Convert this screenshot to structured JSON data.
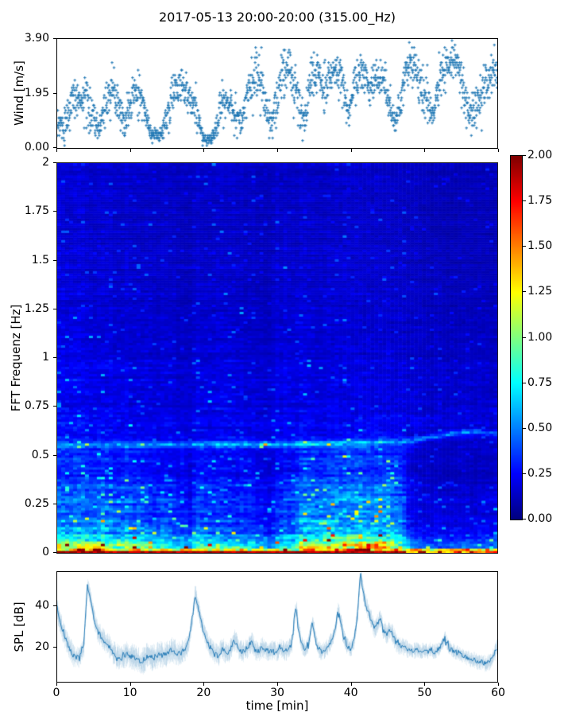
{
  "title": "2017-05-13 20:00-20:00 (315.00_Hz)",
  "colors": {
    "series_blue": "#1f77b4",
    "spine": "#000000",
    "text": "#000000",
    "background": "#ffffff",
    "colormap": "jet"
  },
  "chart_data": [
    {
      "id": "wind",
      "type": "scatter",
      "ylabel": "Wind [m/s]",
      "xlim": [
        0,
        60
      ],
      "ylim": [
        0,
        3.9
      ],
      "ytick_values": [
        0,
        1.95,
        3.9
      ],
      "ytick_labels": [
        "0.00",
        "1.95",
        "3.90"
      ],
      "xtick_values": [
        0,
        10,
        20,
        30,
        40,
        50,
        60
      ],
      "marker": "plus",
      "color": "#1f77b4",
      "n_points": 1750,
      "seed": 20170513,
      "envelope_t_center_spread": [
        [
          0,
          0.7,
          0.5
        ],
        [
          1,
          0.8,
          0.5
        ],
        [
          2,
          1.5,
          0.7
        ],
        [
          3,
          1.8,
          0.8
        ],
        [
          4,
          1.7,
          0.9
        ],
        [
          5,
          1.1,
          0.7
        ],
        [
          5.7,
          0.6,
          0.4
        ],
        [
          6.5,
          1.6,
          0.7
        ],
        [
          7.5,
          2.0,
          0.8
        ],
        [
          8.5,
          1.6,
          0.8
        ],
        [
          9.2,
          0.8,
          0.5
        ],
        [
          10,
          1.7,
          0.8
        ],
        [
          11,
          2.1,
          0.7
        ],
        [
          12,
          1.2,
          0.6
        ],
        [
          12.7,
          0.5,
          0.25
        ],
        [
          14,
          0.45,
          0.2
        ],
        [
          15,
          1.1,
          0.6
        ],
        [
          16,
          2.2,
          0.7
        ],
        [
          17,
          2.4,
          0.6
        ],
        [
          18,
          1.9,
          0.7
        ],
        [
          19,
          1.3,
          0.6
        ],
        [
          19.8,
          0.35,
          0.2
        ],
        [
          21,
          0.3,
          0.15
        ],
        [
          21.8,
          0.9,
          0.5
        ],
        [
          22.5,
          1.7,
          0.6
        ],
        [
          23.5,
          1.6,
          0.6
        ],
        [
          24.5,
          1.1,
          0.5
        ],
        [
          25.2,
          0.9,
          0.4
        ],
        [
          26,
          2.0,
          0.8
        ],
        [
          27,
          2.6,
          0.8
        ],
        [
          28,
          2.2,
          0.9
        ],
        [
          28.8,
          0.9,
          0.6
        ],
        [
          29.5,
          1.0,
          0.7
        ],
        [
          30.5,
          2.6,
          0.8
        ],
        [
          31.5,
          2.9,
          0.7
        ],
        [
          32.3,
          2.2,
          0.8
        ],
        [
          33,
          1.5,
          0.9
        ],
        [
          33.7,
          1.0,
          0.6
        ],
        [
          34.5,
          2.5,
          0.7
        ],
        [
          35.5,
          2.8,
          0.6
        ],
        [
          36.3,
          2.1,
          0.7
        ],
        [
          37,
          2.5,
          0.7
        ],
        [
          38,
          2.8,
          0.6
        ],
        [
          39,
          2.2,
          0.7
        ],
        [
          39.7,
          1.1,
          0.5
        ],
        [
          40.5,
          2.3,
          0.7
        ],
        [
          41.5,
          2.8,
          0.6
        ],
        [
          42.5,
          2.0,
          0.7
        ],
        [
          43.5,
          2.5,
          0.6
        ],
        [
          44.5,
          2.4,
          0.7
        ],
        [
          45.3,
          1.5,
          0.6
        ],
        [
          46,
          0.9,
          0.4
        ],
        [
          46.8,
          1.8,
          0.7
        ],
        [
          47.5,
          2.8,
          0.6
        ],
        [
          48.5,
          3.0,
          0.6
        ],
        [
          49.5,
          2.4,
          0.7
        ],
        [
          50.5,
          1.6,
          0.9
        ],
        [
          51.2,
          1.0,
          0.5
        ],
        [
          52,
          2.2,
          0.8
        ],
        [
          53,
          3.0,
          0.6
        ],
        [
          54,
          3.2,
          0.5
        ],
        [
          55,
          2.6,
          0.8
        ],
        [
          56,
          1.2,
          0.5
        ],
        [
          57,
          1.5,
          0.7
        ],
        [
          58,
          1.9,
          0.8
        ],
        [
          59,
          2.6,
          0.7
        ],
        [
          60,
          2.8,
          0.6
        ]
      ]
    },
    {
      "id": "spectrogram",
      "type": "heatmap",
      "ylabel": "FFT Frequenz [Hz]",
      "xlim": [
        0,
        60
      ],
      "ylim": [
        0,
        2
      ],
      "ytick_values": [
        0,
        0.25,
        0.5,
        0.75,
        1,
        1.25,
        1.5,
        1.75,
        2
      ],
      "ytick_labels": [
        "0",
        "0.25",
        "0.5",
        "0.75",
        "1",
        "1.25",
        "1.5",
        "1.75",
        "2"
      ],
      "colormap": "jet",
      "clim": [
        0,
        2
      ],
      "colorbar_tick_values": [
        0,
        0.25,
        0.5,
        0.75,
        1,
        1.25,
        1.5,
        1.75,
        2
      ],
      "colorbar_tick_labels": [
        "0.00",
        "0.25",
        "0.50",
        "0.75",
        "1.00",
        "1.25",
        "1.50",
        "1.75",
        "2.00"
      ],
      "grid": {
        "cols": 111,
        "rows": 163
      },
      "seed": 315,
      "freq_value_profile": [
        [
          0,
          1.95
        ],
        [
          0.012,
          1.6
        ],
        [
          0.03,
          1.0
        ],
        [
          0.06,
          0.8
        ],
        [
          0.1,
          0.6
        ],
        [
          0.15,
          0.5
        ],
        [
          0.22,
          0.45
        ],
        [
          0.3,
          0.4
        ],
        [
          0.38,
          0.33
        ],
        [
          0.45,
          0.3
        ],
        [
          0.55,
          0.29
        ],
        [
          0.62,
          0.26
        ],
        [
          0.7,
          0.23
        ],
        [
          0.8,
          0.21
        ],
        [
          0.9,
          0.2
        ],
        [
          1.0,
          0.19
        ],
        [
          1.2,
          0.17
        ],
        [
          1.5,
          0.16
        ],
        [
          1.8,
          0.15
        ],
        [
          2.0,
          0.15
        ]
      ],
      "time_mod_lowfreq": [
        [
          0,
          1.05
        ],
        [
          3,
          1.1
        ],
        [
          6,
          1.05
        ],
        [
          9,
          1.0
        ],
        [
          11,
          1.0
        ],
        [
          13,
          0.85
        ],
        [
          15,
          0.8
        ],
        [
          17,
          0.7
        ],
        [
          18,
          0.6
        ],
        [
          19,
          0.85
        ],
        [
          20,
          0.9
        ],
        [
          22,
          0.8
        ],
        [
          24,
          0.72
        ],
        [
          26,
          0.78
        ],
        [
          28,
          0.6
        ],
        [
          29,
          0.55
        ],
        [
          30,
          0.75
        ],
        [
          32,
          0.9
        ],
        [
          33,
          1.1
        ],
        [
          35,
          1.2
        ],
        [
          37,
          1.15
        ],
        [
          38,
          1.2
        ],
        [
          40,
          1.15
        ],
        [
          41,
          1.35
        ],
        [
          42,
          1.3
        ],
        [
          43,
          1.2
        ],
        [
          44,
          1.25
        ],
        [
          45,
          1.2
        ],
        [
          46,
          1.15
        ],
        [
          47,
          0.95
        ],
        [
          48,
          0.55
        ],
        [
          49,
          0.45
        ],
        [
          51,
          0.42
        ],
        [
          53,
          0.4
        ],
        [
          55,
          0.42
        ],
        [
          57,
          0.4
        ],
        [
          59,
          0.45
        ],
        [
          60,
          0.5
        ]
      ],
      "time_mod_highfreq": [
        [
          0,
          1.1
        ],
        [
          4,
          1.05
        ],
        [
          8,
          1.0
        ],
        [
          12,
          0.95
        ],
        [
          16,
          0.85
        ],
        [
          17.5,
          0.72
        ],
        [
          19,
          0.95
        ],
        [
          22,
          0.95
        ],
        [
          25,
          0.9
        ],
        [
          27,
          0.85
        ],
        [
          28.5,
          0.75
        ],
        [
          30,
          0.95
        ],
        [
          33,
          1.0
        ],
        [
          36,
          0.95
        ],
        [
          40,
          0.95
        ],
        [
          44,
          0.95
        ],
        [
          47,
          0.9
        ],
        [
          48.5,
          0.8
        ],
        [
          51,
          0.72
        ],
        [
          54,
          0.7
        ],
        [
          57,
          0.72
        ],
        [
          60,
          0.72
        ]
      ],
      "persistent_band_freq": [
        [
          0,
          0.555
        ],
        [
          20,
          0.56
        ],
        [
          30,
          0.56
        ],
        [
          40,
          0.565
        ],
        [
          48,
          0.575
        ],
        [
          53,
          0.61
        ],
        [
          57,
          0.625
        ],
        [
          60,
          0.615
        ]
      ],
      "persistent_band_gain": [
        [
          0,
          0.25
        ],
        [
          10,
          0.3
        ],
        [
          20,
          0.35
        ],
        [
          28,
          0.45
        ],
        [
          33,
          0.4
        ],
        [
          40,
          0.35
        ],
        [
          47,
          0.3
        ],
        [
          52,
          0.35
        ],
        [
          60,
          0.3
        ]
      ]
    },
    {
      "id": "spl",
      "type": "line",
      "ylabel": "SPL [dB]",
      "xlabel": "time [min]",
      "xlim": [
        0,
        60
      ],
      "xtick_values": [
        0,
        10,
        20,
        30,
        40,
        50,
        60
      ],
      "xtick_labels": [
        "0",
        "10",
        "20",
        "30",
        "40",
        "50",
        "60"
      ],
      "ytick_values": [
        20,
        40
      ],
      "ytick_labels": [
        "20",
        "40"
      ],
      "color": "#1f77b4",
      "seed": 901,
      "mean_keypoints": [
        [
          0,
          38
        ],
        [
          0.3,
          33
        ],
        [
          0.8,
          27
        ],
        [
          1.5,
          21
        ],
        [
          2.2,
          16
        ],
        [
          3,
          15
        ],
        [
          3.6,
          20
        ],
        [
          4.1,
          50
        ],
        [
          4.5,
          44
        ],
        [
          5,
          34
        ],
        [
          5.5,
          28
        ],
        [
          6,
          25
        ],
        [
          6.5,
          23
        ],
        [
          7,
          21
        ],
        [
          7.5,
          18
        ],
        [
          8,
          16
        ],
        [
          8.5,
          15
        ],
        [
          9,
          16
        ],
        [
          9.5,
          17
        ],
        [
          10,
          16
        ],
        [
          10.5,
          15
        ],
        [
          11,
          14
        ],
        [
          11.5,
          13
        ],
        [
          12,
          15
        ],
        [
          12.5,
          16
        ],
        [
          13,
          15
        ],
        [
          13.5,
          16
        ],
        [
          14,
          17
        ],
        [
          14.5,
          16
        ],
        [
          15,
          17
        ],
        [
          15.5,
          19
        ],
        [
          16,
          18
        ],
        [
          16.5,
          17
        ],
        [
          17,
          18
        ],
        [
          17.5,
          19
        ],
        [
          18,
          24
        ],
        [
          18.5,
          36
        ],
        [
          18.8,
          46
        ],
        [
          19.3,
          38
        ],
        [
          19.8,
          30
        ],
        [
          20.3,
          24
        ],
        [
          21,
          19
        ],
        [
          21.5,
          17
        ],
        [
          22,
          16
        ],
        [
          22.5,
          20
        ],
        [
          23,
          17
        ],
        [
          23.5,
          18
        ],
        [
          24,
          22
        ],
        [
          24.3,
          24
        ],
        [
          24.8,
          19
        ],
        [
          25.3,
          18
        ],
        [
          26,
          20
        ],
        [
          26.5,
          23
        ],
        [
          27,
          19
        ],
        [
          27.5,
          18
        ],
        [
          28,
          20
        ],
        [
          28.5,
          19
        ],
        [
          29,
          18
        ],
        [
          29.5,
          19
        ],
        [
          30,
          18
        ],
        [
          30.5,
          20
        ],
        [
          31,
          18
        ],
        [
          31.5,
          19
        ],
        [
          32,
          21
        ],
        [
          32.4,
          35
        ],
        [
          32.6,
          40
        ],
        [
          33,
          27
        ],
        [
          33.4,
          21
        ],
        [
          34,
          19
        ],
        [
          34.4,
          24
        ],
        [
          34.8,
          33
        ],
        [
          35.1,
          27
        ],
        [
          35.5,
          20
        ],
        [
          36,
          18
        ],
        [
          36.5,
          19
        ],
        [
          37,
          21
        ],
        [
          37.5,
          24
        ],
        [
          38,
          30
        ],
        [
          38.3,
          38
        ],
        [
          38.7,
          33
        ],
        [
          39,
          26
        ],
        [
          39.5,
          21
        ],
        [
          40,
          19
        ],
        [
          40.5,
          23
        ],
        [
          41,
          36
        ],
        [
          41.4,
          56
        ],
        [
          41.7,
          48
        ],
        [
          42,
          42
        ],
        [
          42.5,
          37
        ],
        [
          43,
          32
        ],
        [
          43.3,
          29
        ],
        [
          43.7,
          31
        ],
        [
          44.1,
          34
        ],
        [
          44.5,
          29
        ],
        [
          45,
          26
        ],
        [
          45.4,
          29
        ],
        [
          45.8,
          26
        ],
        [
          46.2,
          23
        ],
        [
          46.6,
          21
        ],
        [
          47,
          21
        ],
        [
          47.5,
          20
        ],
        [
          48,
          19
        ],
        [
          48.5,
          18
        ],
        [
          49,
          19
        ],
        [
          49.5,
          18
        ],
        [
          50,
          19
        ],
        [
          50.5,
          18
        ],
        [
          51,
          19
        ],
        [
          51.5,
          18
        ],
        [
          52,
          19
        ],
        [
          52.5,
          21
        ],
        [
          52.9,
          25
        ],
        [
          53.3,
          21
        ],
        [
          53.8,
          19
        ],
        [
          54.3,
          18
        ],
        [
          55,
          17
        ],
        [
          55.5,
          16
        ],
        [
          56,
          15
        ],
        [
          56.5,
          14
        ],
        [
          57,
          14
        ],
        [
          57.5,
          13
        ],
        [
          58,
          13
        ],
        [
          58.5,
          12
        ],
        [
          59,
          13
        ],
        [
          59.4,
          15
        ],
        [
          59.7,
          17
        ],
        [
          60,
          20
        ]
      ],
      "spread_keypoints": [
        [
          0,
          5
        ],
        [
          4,
          4
        ],
        [
          8,
          5
        ],
        [
          12,
          5.5
        ],
        [
          16,
          5
        ],
        [
          19,
          4
        ],
        [
          22,
          4.5
        ],
        [
          30,
          4
        ],
        [
          35,
          3.5
        ],
        [
          40,
          3.5
        ],
        [
          42,
          4
        ],
        [
          46,
          4
        ],
        [
          50,
          3
        ],
        [
          55,
          3
        ],
        [
          60,
          3.5
        ]
      ]
    }
  ]
}
